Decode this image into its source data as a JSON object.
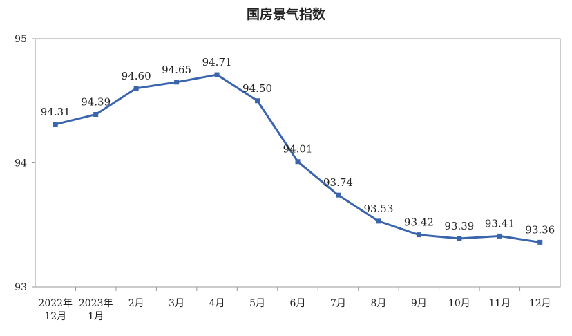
{
  "chart_data": {
    "type": "line",
    "title": "国房景气指数",
    "xlabel": "",
    "ylabel": "",
    "ylim": [
      93,
      95
    ],
    "yticks": [
      "93",
      "94",
      "95"
    ],
    "grid": false,
    "categories": [
      [
        "2022年",
        "12月"
      ],
      [
        "2023年",
        "1月"
      ],
      [
        "2月"
      ],
      [
        "3月"
      ],
      [
        "4月"
      ],
      [
        "5月"
      ],
      [
        "6月"
      ],
      [
        "7月"
      ],
      [
        "8月"
      ],
      [
        "9月"
      ],
      [
        "10月"
      ],
      [
        "11月"
      ],
      [
        "12月"
      ]
    ],
    "series": [
      {
        "values": [
          94.31,
          94.39,
          94.6,
          94.65,
          94.71,
          94.5,
          94.01,
          93.74,
          93.53,
          93.42,
          93.39,
          93.41,
          93.36
        ],
        "labels": [
          "94.31",
          "94.39",
          "94.60",
          "94.65",
          "94.71",
          "94.50",
          "94.01",
          "93.74",
          "93.53",
          "93.42",
          "93.39",
          "93.41",
          "93.36"
        ],
        "color": "#3a65ad"
      }
    ]
  }
}
